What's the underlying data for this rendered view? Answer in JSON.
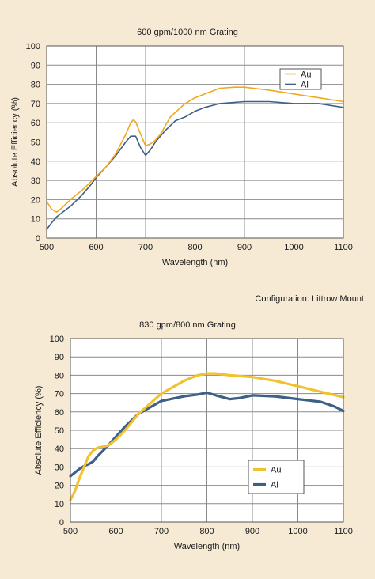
{
  "config_note": "Configuration: Littrow Mount",
  "colors": {
    "au": "#f2a81d",
    "al": "#3e5f86",
    "background": "#f6ead4",
    "plot_bg": "#ffffff",
    "grid": "#8a8a8a"
  },
  "chart_data": [
    {
      "type": "line",
      "title": "600 gpm/1000 nm Grating",
      "xlabel": "Wavelength (nm)",
      "ylabel": "Absolute Efficiency (%)",
      "xlim": [
        500,
        1100
      ],
      "ylim": [
        0,
        100
      ],
      "xticks": [
        500,
        600,
        700,
        800,
        900,
        1000,
        1100
      ],
      "yticks": [
        0,
        10,
        20,
        30,
        40,
        50,
        60,
        70,
        80,
        90,
        100
      ],
      "grid": true,
      "legend": "top-right",
      "series": [
        {
          "name": "Au",
          "color": "#f2a81d",
          "width": 1.6,
          "x": [
            500,
            510,
            520,
            530,
            540,
            550,
            560,
            570,
            580,
            590,
            600,
            620,
            640,
            660,
            670,
            675,
            680,
            690,
            700,
            710,
            720,
            730,
            750,
            780,
            800,
            820,
            850,
            880,
            900,
            950,
            1000,
            1050,
            1100
          ],
          "y": [
            19,
            15,
            13.5,
            15.5,
            18,
            20.5,
            22.5,
            24.5,
            27,
            29.5,
            32,
            37,
            44,
            54,
            60,
            61.5,
            60.5,
            54,
            48,
            49,
            51,
            54,
            63,
            70,
            73,
            75,
            78,
            78.5,
            78.5,
            77,
            75,
            73,
            71
          ]
        },
        {
          "name": "Al",
          "color": "#3e5f86",
          "width": 1.6,
          "x": [
            500,
            510,
            520,
            530,
            540,
            550,
            560,
            570,
            580,
            590,
            600,
            620,
            640,
            660,
            670,
            680,
            690,
            700,
            710,
            720,
            740,
            760,
            780,
            800,
            820,
            850,
            900,
            950,
            1000,
            1050,
            1100
          ],
          "y": [
            4.5,
            8,
            11,
            13,
            15,
            17,
            19.5,
            22,
            25,
            28,
            31.5,
            37,
            43,
            50,
            53,
            53,
            47,
            43,
            46,
            50,
            56,
            61,
            63,
            66,
            68,
            70,
            71,
            71,
            70,
            70,
            68
          ]
        }
      ]
    },
    {
      "type": "line",
      "title": "830 gpm/800 nm Grating",
      "xlabel": "Wavelength (nm)",
      "ylabel": "Absolute Efficiency (%)",
      "xlim": [
        500,
        1100
      ],
      "ylim": [
        0,
        100
      ],
      "xticks": [
        500,
        600,
        700,
        800,
        900,
        1000,
        1100
      ],
      "yticks": [
        0,
        10,
        20,
        30,
        40,
        50,
        60,
        70,
        80,
        90,
        100
      ],
      "grid": true,
      "legend": "bottom-center",
      "series": [
        {
          "name": "Au",
          "color": "#f2c12e",
          "width": 3.2,
          "x": [
            500,
            510,
            520,
            530,
            540,
            550,
            560,
            570,
            580,
            590,
            600,
            620,
            650,
            700,
            750,
            780,
            800,
            820,
            850,
            900,
            950,
            1000,
            1050,
            1100
          ],
          "y": [
            12,
            17,
            24,
            30,
            36,
            39,
            40.5,
            41,
            41.5,
            43,
            45,
            50,
            59,
            70,
            77,
            80,
            81,
            81,
            80,
            79,
            77,
            74,
            71,
            68
          ]
        },
        {
          "name": "Al",
          "color": "#3e5f86",
          "width": 3.2,
          "x": [
            500,
            510,
            520,
            530,
            540,
            550,
            560,
            580,
            600,
            620,
            650,
            700,
            750,
            780,
            800,
            820,
            850,
            870,
            900,
            950,
            1000,
            1050,
            1080,
            1100
          ],
          "y": [
            25,
            27,
            29,
            30.5,
            31.5,
            33,
            36,
            41,
            46.5,
            52,
            59,
            66,
            68.5,
            69.5,
            70.5,
            69,
            67,
            67.5,
            69,
            68.5,
            67,
            65.5,
            63,
            60.5
          ]
        }
      ]
    }
  ]
}
